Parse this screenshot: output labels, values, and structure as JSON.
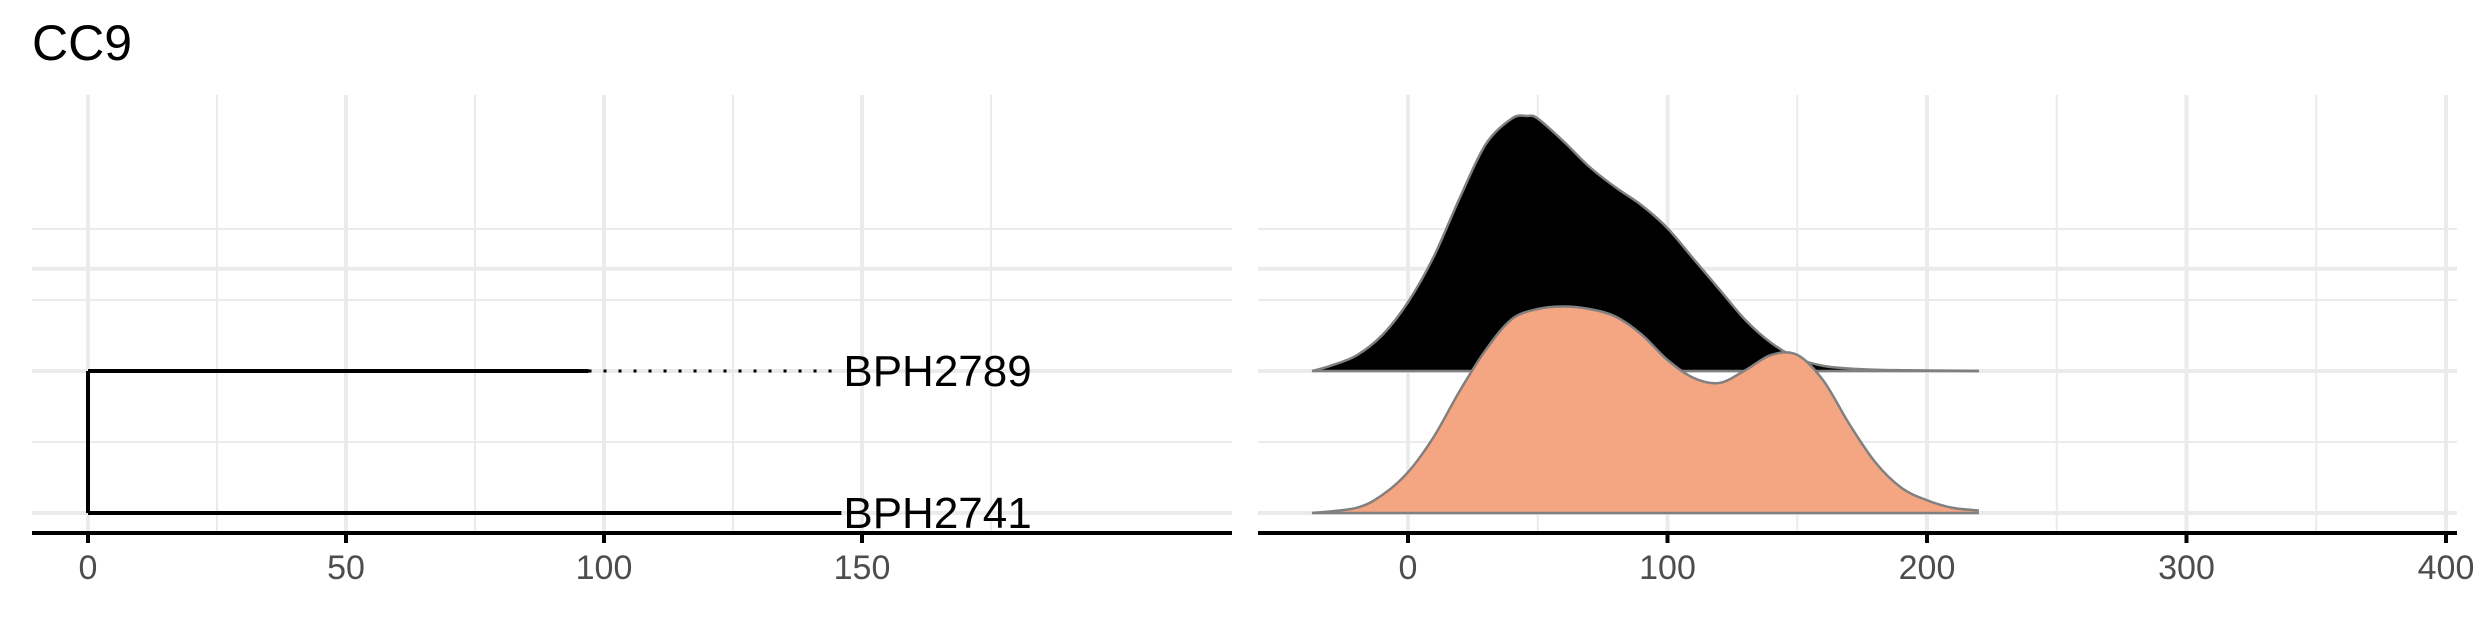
{
  "title": "CC9",
  "colors": {
    "grid": "#ebebeb",
    "axis": "#000000",
    "tick_label": "#4d4d4d",
    "density_outline": "#808080"
  },
  "chart_data": [
    {
      "type": "tree",
      "title": "CC9",
      "xlim": [
        -9,
        199
      ],
      "ylim": [
        0.85,
        3.15
      ],
      "x_ticks": [
        0,
        50,
        100,
        150
      ],
      "x_tick_labels": [
        "0",
        "50",
        "100",
        "150"
      ],
      "grid": true,
      "tips": [
        {
          "label": "BPH2789",
          "y": 2,
          "branch_end": 97,
          "label_x": 146
        },
        {
          "label": "BPH2741",
          "y": 1,
          "branch_end": 146,
          "label_x": 146
        }
      ],
      "root": {
        "x": 0,
        "y_min": 1,
        "y_max": 2
      }
    },
    {
      "type": "area",
      "subtype": "ridgeline-density",
      "xlim": [
        -57,
        400
      ],
      "x_ticks": [
        0,
        100,
        200,
        300,
        400
      ],
      "x_tick_labels": [
        "0",
        "100",
        "200",
        "300",
        "400"
      ],
      "grid": true,
      "series": [
        {
          "name": "BPH2789",
          "baseline": 2,
          "fill": "#000000",
          "x": [
            -37,
            -30,
            -20,
            -10,
            0,
            10,
            20,
            30,
            40,
            46,
            50,
            60,
            70,
            80,
            90,
            100,
            110,
            120,
            130,
            140,
            150,
            160,
            170,
            180,
            190,
            200,
            210,
            220
          ],
          "density": [
            0.0,
            0.02,
            0.06,
            0.14,
            0.27,
            0.45,
            0.68,
            0.89,
            0.99,
            1.0,
            0.99,
            0.9,
            0.8,
            0.72,
            0.65,
            0.56,
            0.44,
            0.32,
            0.2,
            0.11,
            0.05,
            0.02,
            0.01,
            0.005,
            0.003,
            0.002,
            0.001,
            0.0
          ]
        },
        {
          "name": "BPH2741",
          "baseline": 1,
          "fill": "#f4a582",
          "x": [
            -37,
            -20,
            -10,
            0,
            10,
            20,
            30,
            40,
            50,
            60,
            70,
            80,
            90,
            100,
            110,
            120,
            130,
            140,
            150,
            160,
            170,
            180,
            190,
            200,
            210,
            220
          ],
          "density": [
            0.0,
            0.02,
            0.07,
            0.16,
            0.3,
            0.48,
            0.64,
            0.76,
            0.8,
            0.81,
            0.8,
            0.77,
            0.7,
            0.6,
            0.53,
            0.51,
            0.56,
            0.62,
            0.62,
            0.52,
            0.35,
            0.2,
            0.1,
            0.05,
            0.02,
            0.01
          ]
        }
      ]
    }
  ]
}
